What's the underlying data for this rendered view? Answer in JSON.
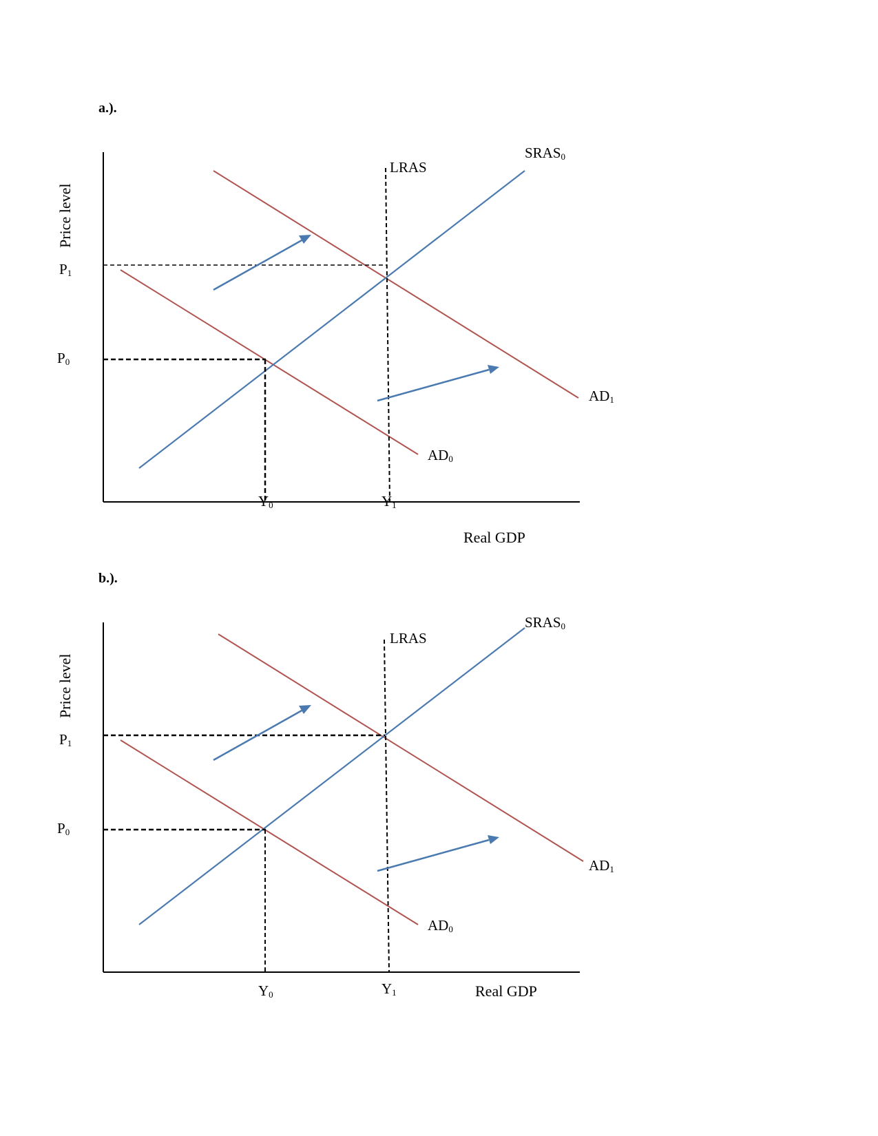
{
  "panels": [
    {
      "id": "a",
      "label": "a.).",
      "y_axis_title": "Price level",
      "x_axis_title": "Real GDP",
      "price_labels": [
        {
          "main": "P",
          "sub": "1"
        },
        {
          "main": "P",
          "sub": "0"
        }
      ],
      "output_labels": [
        {
          "main": "Y",
          "sub": "0"
        },
        {
          "main": "Y",
          "sub": "1"
        }
      ],
      "curve_labels": {
        "lras": "LRAS",
        "sras": {
          "main": "SRAS",
          "sub": "0"
        },
        "ad0": {
          "main": "AD",
          "sub": "0"
        },
        "ad1": {
          "main": "AD",
          "sub": "1"
        }
      }
    },
    {
      "id": "b",
      "label": "b.).",
      "y_axis_title": "Price level",
      "x_axis_title": "Real GDP",
      "price_labels": [
        {
          "main": "P",
          "sub": "1"
        },
        {
          "main": "P",
          "sub": "0"
        }
      ],
      "output_labels": [
        {
          "main": "Y",
          "sub": "0"
        },
        {
          "main": "Y",
          "sub": "1"
        }
      ],
      "curve_labels": {
        "lras": "LRAS",
        "sras": {
          "main": "SRAS",
          "sub": "0"
        },
        "ad0": {
          "main": "AD",
          "sub": "0"
        },
        "ad1": {
          "main": "AD",
          "sub": "1"
        }
      }
    }
  ],
  "colors": {
    "ad_curve": "#b05450",
    "sras_curve": "#4a7ab0",
    "shift_arrow": "#4a7ab0",
    "guide_line": "#000000"
  }
}
